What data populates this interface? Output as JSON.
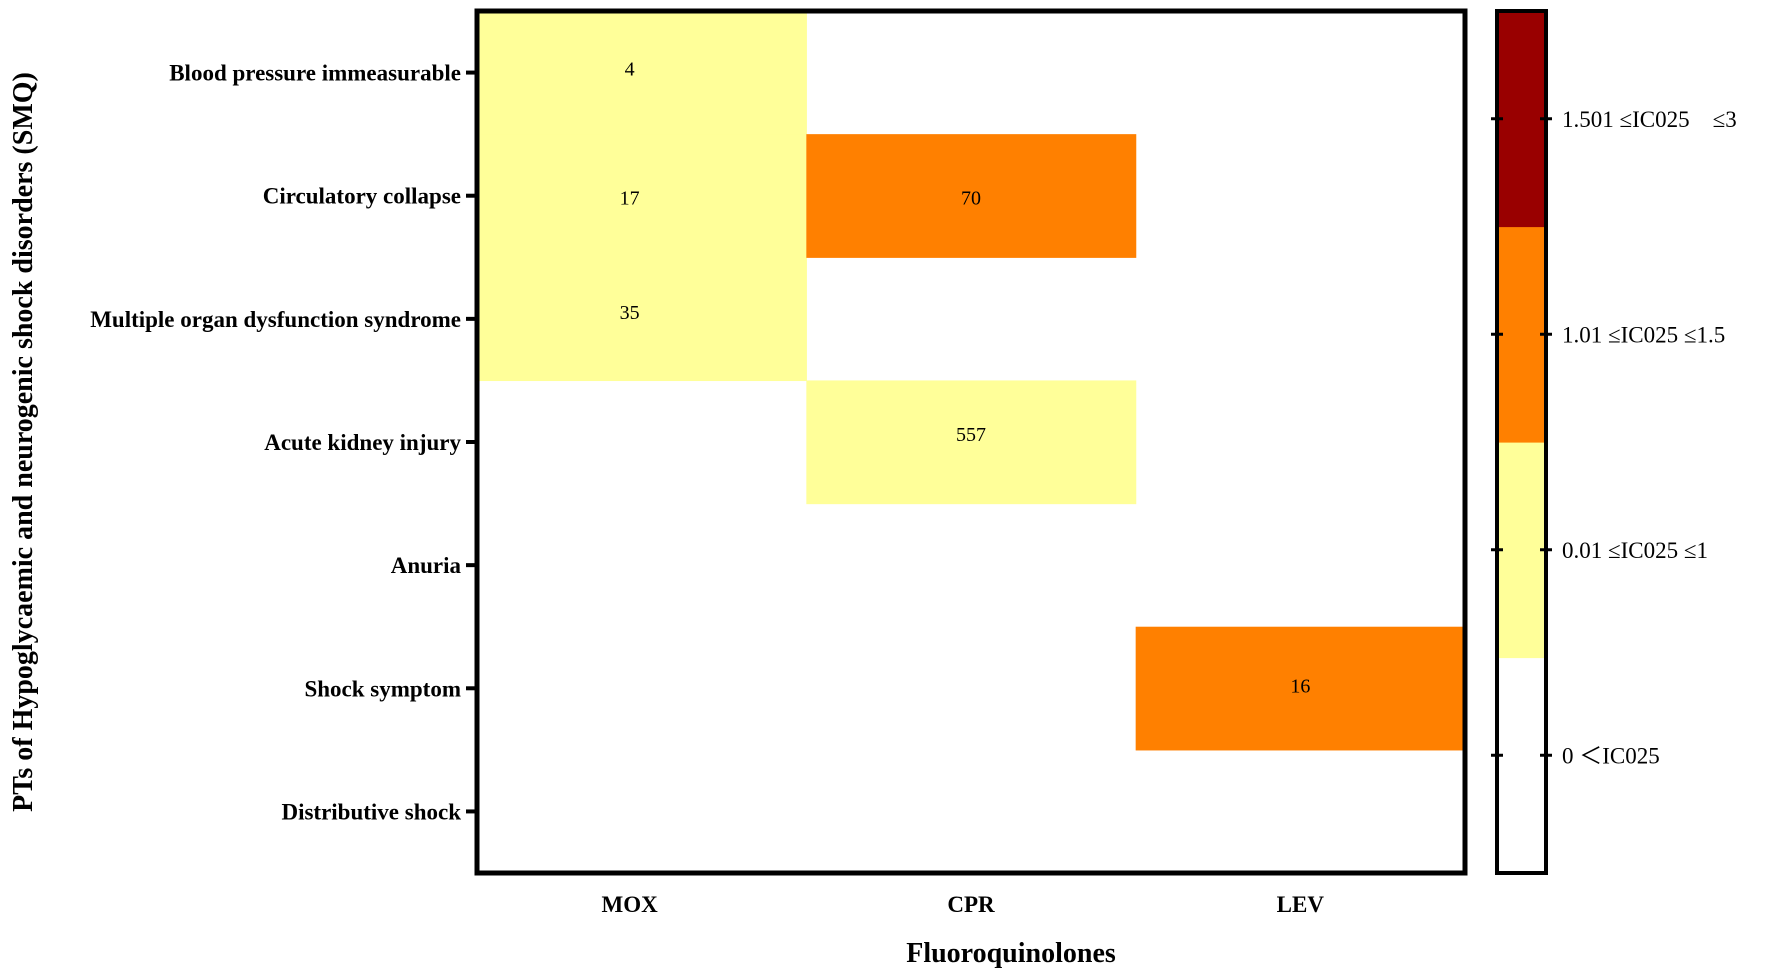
{
  "chart_data": {
    "type": "heatmap",
    "title": "",
    "xlabel": "Fluoroquinolones",
    "ylabel": "PTs of Hypoglycaemic and neurogenic shock disorders (SMQ)",
    "x_categories": [
      "MOX",
      "CPR",
      "LEV"
    ],
    "y_categories": [
      "Blood pressure immeasurable",
      "Circulatory collapse",
      "Multiple organ dysfunction syndrome",
      "Acute kidney injury",
      "Anuria",
      "Shock symptom",
      "Distributive shock"
    ],
    "cells": [
      {
        "x": "MOX",
        "y": "Blood pressure immeasurable",
        "label": "4",
        "bin": 1
      },
      {
        "x": "MOX",
        "y": "Circulatory collapse",
        "label": "17",
        "bin": 1
      },
      {
        "x": "MOX",
        "y": "Multiple organ dysfunction syndrome",
        "label": "35",
        "bin": 1
      },
      {
        "x": "CPR",
        "y": "Circulatory collapse",
        "label": "70",
        "bin": 2
      },
      {
        "x": "CPR",
        "y": "Acute kidney injury",
        "label": "557",
        "bin": 1
      },
      {
        "x": "LEV",
        "y": "Shock symptom",
        "label": "16",
        "bin": 2
      }
    ],
    "legend": {
      "placement": "right",
      "bins": [
        {
          "label": "0 ＜IC025",
          "color": "#ffffff"
        },
        {
          "label": "0.01 ≤IC025 ≤1",
          "color": "#ffff99"
        },
        {
          "label": "1.01 ≤IC025 ≤1.5",
          "color": "#ff8000"
        },
        {
          "label": "1.501 ≤IC025　≤3",
          "color": "#990000"
        }
      ]
    },
    "grid": false
  }
}
